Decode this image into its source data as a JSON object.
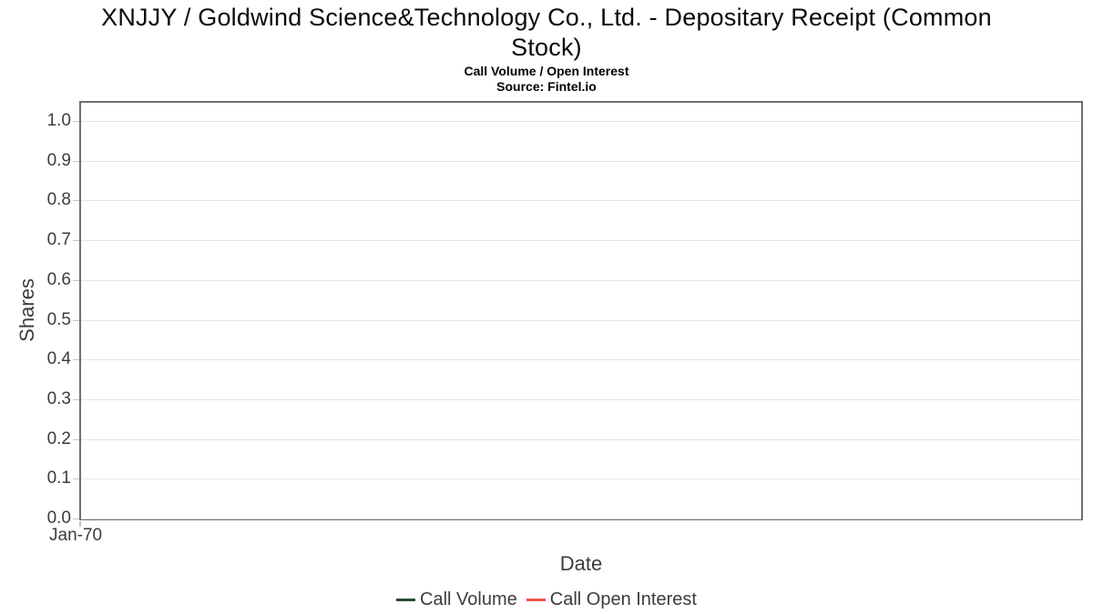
{
  "header": {
    "title_line1": "XNJJY / Goldwind Science&Technology Co., Ltd. - Depositary Receipt (Common",
    "title_line2": "Stock)",
    "subtitle": "Call Volume / Open Interest",
    "source": "Source: Fintel.io"
  },
  "chart_data": {
    "type": "line",
    "title": "XNJJY / Goldwind Science&Technology Co., Ltd. - Depositary Receipt (Common Stock)",
    "subtitle": "Call Volume / Open Interest",
    "source": "Source: Fintel.io",
    "xlabel": "Date",
    "ylabel": "Shares",
    "ylim": [
      0.0,
      1.0
    ],
    "yticks": [
      "1.0",
      "0.9",
      "0.8",
      "0.7",
      "0.6",
      "0.5",
      "0.4",
      "0.3",
      "0.2",
      "0.1",
      "0.0"
    ],
    "xticks": [
      "Jan-70"
    ],
    "grid": true,
    "legend_position": "bottom",
    "series": [
      {
        "name": "Call Volume",
        "color": "#254d32",
        "x": [],
        "values": []
      },
      {
        "name": "Call Open Interest",
        "color": "#f0544f",
        "x": [],
        "values": []
      }
    ]
  }
}
